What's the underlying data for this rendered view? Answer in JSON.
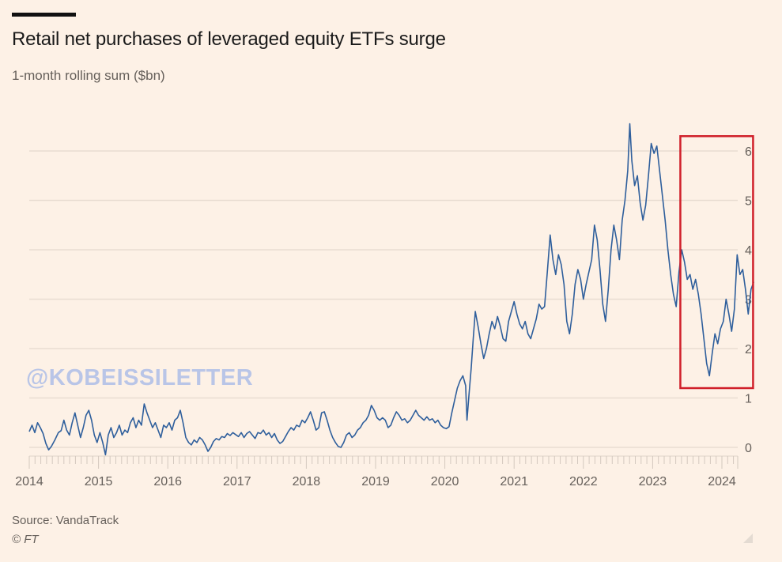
{
  "header": {
    "title": "Retail net purchases of leveraged equity ETFs surge",
    "subtitle": "1-month rolling sum ($bn)"
  },
  "footer": {
    "source": "Source: VandaTrack",
    "copyright": "© FT"
  },
  "watermark": "@KOBEISSILETTER",
  "colors": {
    "background": "#fdf1e6",
    "line": "#2f5f9c",
    "highlight_box": "#d0202a",
    "grid": "#e9ddd2",
    "axis_text": "#66605b"
  },
  "chart_data": {
    "type": "line",
    "title": "Retail net purchases of leveraged equity ETFs surge",
    "subtitle": "1-month rolling sum ($bn)",
    "xlabel": "",
    "ylabel": "$bn",
    "xlim": [
      2014.0,
      2024.35
    ],
    "ylim": [
      0,
      6
    ],
    "y_axis_side": "right",
    "grid": true,
    "x_ticks": [
      "2014",
      "2015",
      "2016",
      "2017",
      "2018",
      "2019",
      "2020",
      "2021",
      "2022",
      "2023",
      "2024"
    ],
    "y_ticks": [
      "0",
      "1",
      "2",
      "3",
      "4",
      "5",
      "6"
    ],
    "highlight": {
      "type": "rectangle",
      "x_range": [
        2023.4,
        2024.45
      ],
      "y_range": [
        1.2,
        6.3
      ],
      "color": "#d0202a"
    },
    "series": [
      {
        "name": "Retail net purchases (1-month rolling sum, $bn)",
        "points": [
          [
            2014.0,
            0.32
          ],
          [
            2014.04,
            0.45
          ],
          [
            2014.08,
            0.3
          ],
          [
            2014.12,
            0.5
          ],
          [
            2014.16,
            0.4
          ],
          [
            2014.2,
            0.28
          ],
          [
            2014.24,
            0.08
          ],
          [
            2014.28,
            -0.05
          ],
          [
            2014.32,
            0.02
          ],
          [
            2014.37,
            0.15
          ],
          [
            2014.42,
            0.3
          ],
          [
            2014.46,
            0.34
          ],
          [
            2014.5,
            0.55
          ],
          [
            2014.54,
            0.35
          ],
          [
            2014.58,
            0.25
          ],
          [
            2014.62,
            0.5
          ],
          [
            2014.66,
            0.7
          ],
          [
            2014.7,
            0.45
          ],
          [
            2014.74,
            0.2
          ],
          [
            2014.78,
            0.4
          ],
          [
            2014.82,
            0.65
          ],
          [
            2014.86,
            0.75
          ],
          [
            2014.9,
            0.55
          ],
          [
            2014.94,
            0.25
          ],
          [
            2014.98,
            0.1
          ],
          [
            2015.02,
            0.3
          ],
          [
            2015.06,
            0.1
          ],
          [
            2015.1,
            -0.15
          ],
          [
            2015.14,
            0.25
          ],
          [
            2015.18,
            0.4
          ],
          [
            2015.22,
            0.2
          ],
          [
            2015.26,
            0.3
          ],
          [
            2015.3,
            0.45
          ],
          [
            2015.34,
            0.25
          ],
          [
            2015.38,
            0.35
          ],
          [
            2015.42,
            0.3
          ],
          [
            2015.46,
            0.5
          ],
          [
            2015.5,
            0.6
          ],
          [
            2015.54,
            0.4
          ],
          [
            2015.58,
            0.55
          ],
          [
            2015.62,
            0.45
          ],
          [
            2015.66,
            0.88
          ],
          [
            2015.7,
            0.7
          ],
          [
            2015.74,
            0.55
          ],
          [
            2015.78,
            0.4
          ],
          [
            2015.82,
            0.5
          ],
          [
            2015.86,
            0.35
          ],
          [
            2015.9,
            0.2
          ],
          [
            2015.94,
            0.45
          ],
          [
            2015.98,
            0.4
          ],
          [
            2016.02,
            0.5
          ],
          [
            2016.06,
            0.35
          ],
          [
            2016.1,
            0.55
          ],
          [
            2016.14,
            0.6
          ],
          [
            2016.18,
            0.75
          ],
          [
            2016.22,
            0.5
          ],
          [
            2016.26,
            0.2
          ],
          [
            2016.3,
            0.1
          ],
          [
            2016.34,
            0.05
          ],
          [
            2016.38,
            0.15
          ],
          [
            2016.42,
            0.1
          ],
          [
            2016.46,
            0.2
          ],
          [
            2016.5,
            0.15
          ],
          [
            2016.54,
            0.05
          ],
          [
            2016.58,
            -0.08
          ],
          [
            2016.62,
            0.0
          ],
          [
            2016.66,
            0.12
          ],
          [
            2016.7,
            0.18
          ],
          [
            2016.74,
            0.15
          ],
          [
            2016.78,
            0.22
          ],
          [
            2016.82,
            0.2
          ],
          [
            2016.86,
            0.28
          ],
          [
            2016.9,
            0.24
          ],
          [
            2016.94,
            0.3
          ],
          [
            2016.98,
            0.26
          ],
          [
            2017.02,
            0.22
          ],
          [
            2017.06,
            0.3
          ],
          [
            2017.1,
            0.2
          ],
          [
            2017.14,
            0.28
          ],
          [
            2017.18,
            0.32
          ],
          [
            2017.22,
            0.25
          ],
          [
            2017.26,
            0.18
          ],
          [
            2017.3,
            0.3
          ],
          [
            2017.34,
            0.28
          ],
          [
            2017.38,
            0.35
          ],
          [
            2017.42,
            0.25
          ],
          [
            2017.46,
            0.3
          ],
          [
            2017.5,
            0.2
          ],
          [
            2017.54,
            0.28
          ],
          [
            2017.58,
            0.15
          ],
          [
            2017.62,
            0.08
          ],
          [
            2017.66,
            0.12
          ],
          [
            2017.7,
            0.22
          ],
          [
            2017.74,
            0.32
          ],
          [
            2017.78,
            0.4
          ],
          [
            2017.82,
            0.35
          ],
          [
            2017.86,
            0.45
          ],
          [
            2017.9,
            0.42
          ],
          [
            2017.94,
            0.55
          ],
          [
            2017.98,
            0.5
          ],
          [
            2018.02,
            0.6
          ],
          [
            2018.06,
            0.72
          ],
          [
            2018.1,
            0.55
          ],
          [
            2018.14,
            0.35
          ],
          [
            2018.18,
            0.4
          ],
          [
            2018.22,
            0.7
          ],
          [
            2018.26,
            0.72
          ],
          [
            2018.3,
            0.55
          ],
          [
            2018.34,
            0.35
          ],
          [
            2018.38,
            0.2
          ],
          [
            2018.42,
            0.1
          ],
          [
            2018.46,
            0.02
          ],
          [
            2018.5,
            0.0
          ],
          [
            2018.54,
            0.1
          ],
          [
            2018.58,
            0.25
          ],
          [
            2018.62,
            0.3
          ],
          [
            2018.66,
            0.2
          ],
          [
            2018.7,
            0.25
          ],
          [
            2018.74,
            0.35
          ],
          [
            2018.78,
            0.4
          ],
          [
            2018.82,
            0.5
          ],
          [
            2018.86,
            0.55
          ],
          [
            2018.9,
            0.65
          ],
          [
            2018.94,
            0.85
          ],
          [
            2018.98,
            0.75
          ],
          [
            2019.02,
            0.6
          ],
          [
            2019.06,
            0.55
          ],
          [
            2019.1,
            0.6
          ],
          [
            2019.14,
            0.55
          ],
          [
            2019.18,
            0.4
          ],
          [
            2019.22,
            0.45
          ],
          [
            2019.26,
            0.6
          ],
          [
            2019.3,
            0.72
          ],
          [
            2019.34,
            0.65
          ],
          [
            2019.38,
            0.55
          ],
          [
            2019.42,
            0.58
          ],
          [
            2019.46,
            0.5
          ],
          [
            2019.5,
            0.55
          ],
          [
            2019.54,
            0.65
          ],
          [
            2019.58,
            0.75
          ],
          [
            2019.62,
            0.65
          ],
          [
            2019.66,
            0.6
          ],
          [
            2019.7,
            0.55
          ],
          [
            2019.74,
            0.62
          ],
          [
            2019.78,
            0.55
          ],
          [
            2019.82,
            0.58
          ],
          [
            2019.86,
            0.5
          ],
          [
            2019.9,
            0.55
          ],
          [
            2019.94,
            0.45
          ],
          [
            2019.98,
            0.4
          ],
          [
            2020.02,
            0.38
          ],
          [
            2020.06,
            0.42
          ],
          [
            2020.1,
            0.7
          ],
          [
            2020.14,
            0.95
          ],
          [
            2020.18,
            1.2
          ],
          [
            2020.22,
            1.35
          ],
          [
            2020.26,
            1.45
          ],
          [
            2020.3,
            1.25
          ],
          [
            2020.32,
            0.55
          ],
          [
            2020.35,
            1.1
          ],
          [
            2020.38,
            1.6
          ],
          [
            2020.41,
            2.2
          ],
          [
            2020.44,
            2.75
          ],
          [
            2020.48,
            2.45
          ],
          [
            2020.52,
            2.1
          ],
          [
            2020.56,
            1.8
          ],
          [
            2020.6,
            2.0
          ],
          [
            2020.64,
            2.3
          ],
          [
            2020.68,
            2.55
          ],
          [
            2020.72,
            2.4
          ],
          [
            2020.76,
            2.65
          ],
          [
            2020.8,
            2.45
          ],
          [
            2020.84,
            2.2
          ],
          [
            2020.88,
            2.15
          ],
          [
            2020.92,
            2.55
          ],
          [
            2020.96,
            2.75
          ],
          [
            2021.0,
            2.95
          ],
          [
            2021.04,
            2.7
          ],
          [
            2021.08,
            2.5
          ],
          [
            2021.12,
            2.4
          ],
          [
            2021.16,
            2.55
          ],
          [
            2021.2,
            2.3
          ],
          [
            2021.24,
            2.2
          ],
          [
            2021.28,
            2.4
          ],
          [
            2021.32,
            2.6
          ],
          [
            2021.36,
            2.9
          ],
          [
            2021.4,
            2.8
          ],
          [
            2021.44,
            2.85
          ],
          [
            2021.48,
            3.55
          ],
          [
            2021.52,
            4.3
          ],
          [
            2021.56,
            3.8
          ],
          [
            2021.6,
            3.5
          ],
          [
            2021.64,
            3.9
          ],
          [
            2021.68,
            3.7
          ],
          [
            2021.72,
            3.3
          ],
          [
            2021.76,
            2.55
          ],
          [
            2021.8,
            2.3
          ],
          [
            2021.84,
            2.7
          ],
          [
            2021.88,
            3.3
          ],
          [
            2021.92,
            3.6
          ],
          [
            2021.96,
            3.4
          ],
          [
            2022.0,
            3.0
          ],
          [
            2022.04,
            3.3
          ],
          [
            2022.08,
            3.55
          ],
          [
            2022.12,
            3.8
          ],
          [
            2022.16,
            4.5
          ],
          [
            2022.2,
            4.2
          ],
          [
            2022.24,
            3.6
          ],
          [
            2022.28,
            2.9
          ],
          [
            2022.32,
            2.55
          ],
          [
            2022.36,
            3.2
          ],
          [
            2022.4,
            4.0
          ],
          [
            2022.44,
            4.5
          ],
          [
            2022.48,
            4.2
          ],
          [
            2022.52,
            3.8
          ],
          [
            2022.56,
            4.6
          ],
          [
            2022.6,
            5.0
          ],
          [
            2022.64,
            5.6
          ],
          [
            2022.67,
            6.55
          ],
          [
            2022.7,
            5.8
          ],
          [
            2022.74,
            5.3
          ],
          [
            2022.78,
            5.5
          ],
          [
            2022.82,
            4.95
          ],
          [
            2022.86,
            4.6
          ],
          [
            2022.9,
            4.9
          ],
          [
            2022.94,
            5.5
          ],
          [
            2022.98,
            6.15
          ],
          [
            2023.02,
            5.95
          ],
          [
            2023.06,
            6.1
          ],
          [
            2023.1,
            5.6
          ],
          [
            2023.14,
            5.1
          ],
          [
            2023.18,
            4.6
          ],
          [
            2023.22,
            4.0
          ],
          [
            2023.26,
            3.5
          ],
          [
            2023.3,
            3.1
          ],
          [
            2023.34,
            2.85
          ],
          [
            2023.38,
            3.55
          ],
          [
            2023.42,
            4.0
          ],
          [
            2023.46,
            3.75
          ],
          [
            2023.5,
            3.4
          ],
          [
            2023.54,
            3.5
          ],
          [
            2023.58,
            3.2
          ],
          [
            2023.62,
            3.4
          ],
          [
            2023.66,
            3.1
          ],
          [
            2023.7,
            2.7
          ],
          [
            2023.74,
            2.2
          ],
          [
            2023.78,
            1.7
          ],
          [
            2023.82,
            1.45
          ],
          [
            2023.86,
            1.9
          ],
          [
            2023.9,
            2.3
          ],
          [
            2023.94,
            2.1
          ],
          [
            2023.98,
            2.4
          ],
          [
            2024.02,
            2.55
          ],
          [
            2024.06,
            3.0
          ],
          [
            2024.1,
            2.7
          ],
          [
            2024.14,
            2.35
          ],
          [
            2024.18,
            2.8
          ],
          [
            2024.22,
            3.9
          ],
          [
            2024.26,
            3.5
          ],
          [
            2024.3,
            3.6
          ],
          [
            2024.34,
            3.2
          ],
          [
            2024.38,
            2.7
          ],
          [
            2024.42,
            3.2
          ],
          [
            2024.46,
            3.35
          ]
        ]
      }
    ]
  }
}
